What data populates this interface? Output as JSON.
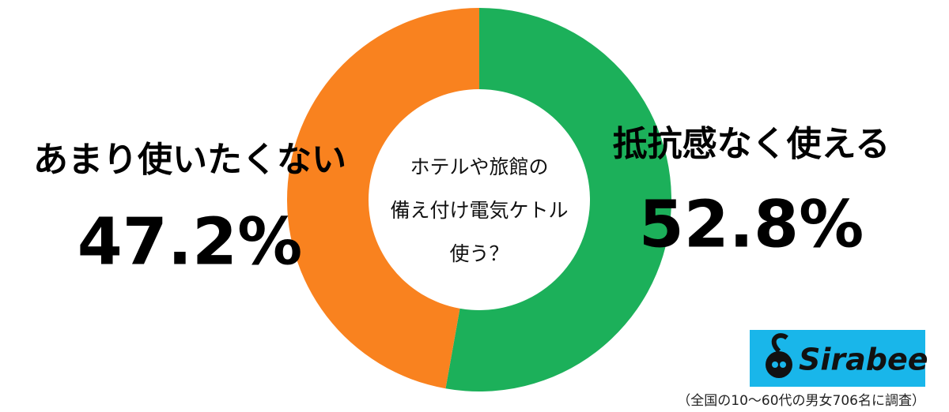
{
  "chart_data": {
    "type": "donut",
    "center_text": [
      "ホテルや旅館の",
      "備え付け電気ケトル",
      "使う？"
    ],
    "categories": [
      "抵抗感なく使える",
      "あまり使いたくない"
    ],
    "values": [
      52.8,
      47.2
    ],
    "value_labels": [
      "52.8%",
      "47.2%"
    ],
    "colors": [
      "#1cb05a",
      "#f9821f"
    ],
    "note": "（全国の10〜60代の男女706名に調査）"
  },
  "logo": "Sirabee"
}
